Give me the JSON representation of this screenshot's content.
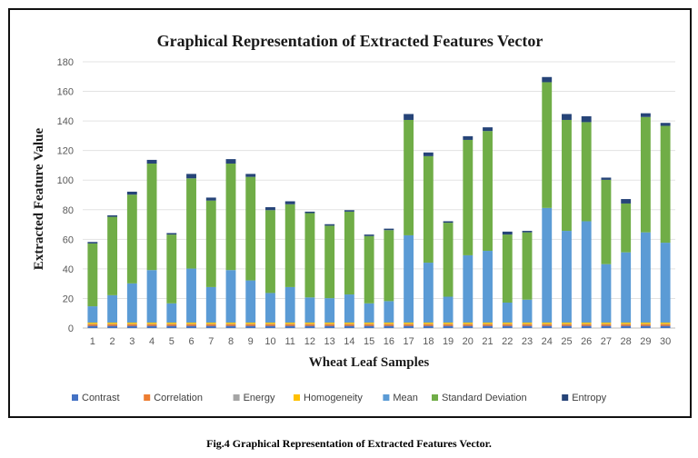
{
  "chart_data": {
    "type": "bar",
    "stacked": true,
    "title": "Graphical Representation of Extracted Features Vector",
    "xlabel": "Wheat Leaf Samples",
    "ylabel": "Extracted Feature Value",
    "ylim": [
      0,
      180
    ],
    "yticks": [
      0,
      20,
      40,
      60,
      80,
      100,
      120,
      140,
      160,
      180
    ],
    "grid": true,
    "legend_position": "bottom",
    "categories": [
      "1",
      "2",
      "3",
      "4",
      "5",
      "6",
      "7",
      "8",
      "9",
      "10",
      "11",
      "12",
      "13",
      "14",
      "15",
      "16",
      "17",
      "18",
      "19",
      "20",
      "21",
      "22",
      "23",
      "24",
      "25",
      "26",
      "27",
      "28",
      "29",
      "30"
    ],
    "series": [
      {
        "name": "Contrast",
        "color": "#4472C4",
        "values": [
          1.5,
          1.5,
          1.5,
          1.5,
          1.5,
          1.5,
          1.5,
          1.5,
          1.5,
          1.5,
          1.5,
          1.5,
          1.5,
          1.5,
          1.5,
          1.5,
          1.5,
          1.5,
          1.5,
          1.5,
          1.5,
          1.5,
          1.5,
          1.5,
          1.5,
          1.5,
          1.5,
          1.5,
          1.5,
          1.5
        ]
      },
      {
        "name": "Correlation",
        "color": "#ED7D31",
        "values": [
          1,
          1,
          1,
          1,
          1,
          1,
          1,
          1,
          1,
          1,
          1,
          1,
          1,
          1,
          1,
          1,
          1,
          1,
          1,
          1,
          1,
          1,
          1,
          1,
          1,
          1,
          1,
          1,
          1,
          1
        ]
      },
      {
        "name": "Energy",
        "color": "#A5A5A5",
        "values": [
          0.3,
          0.3,
          0.3,
          0.3,
          0.3,
          0.3,
          0.3,
          0.3,
          0.3,
          0.3,
          0.3,
          0.3,
          0.3,
          0.3,
          0.3,
          0.3,
          0.3,
          0.3,
          0.3,
          0.3,
          0.3,
          0.3,
          0.3,
          0.3,
          0.3,
          0.3,
          0.3,
          0.3,
          0.3,
          0.3
        ]
      },
      {
        "name": "Homogeneity",
        "color": "#FFC000",
        "values": [
          0.9,
          0.9,
          0.9,
          0.9,
          0.9,
          0.9,
          0.9,
          0.9,
          0.9,
          0.9,
          0.9,
          0.9,
          0.9,
          0.9,
          0.9,
          0.9,
          0.9,
          0.9,
          0.9,
          0.9,
          0.9,
          0.9,
          0.9,
          0.9,
          0.9,
          0.9,
          0.9,
          0.9,
          0.9,
          0.9
        ]
      },
      {
        "name": "Mean",
        "color": "#5B9BD5",
        "values": [
          11,
          18.5,
          26.5,
          35.5,
          13,
          36.5,
          24,
          35.5,
          28.5,
          20,
          24,
          17,
          16.5,
          19,
          13,
          14.5,
          59,
          40.5,
          17.5,
          45.5,
          48.5,
          13.5,
          15.5,
          77.5,
          62,
          68.5,
          39.5,
          47.5,
          61,
          54
        ]
      },
      {
        "name": "Standard Deviation",
        "color": "#70AD47",
        "values": [
          42.5,
          53,
          60,
          72,
          46.5,
          61,
          58.5,
          72,
          70,
          56,
          56,
          57,
          49,
          56,
          45.5,
          48,
          78,
          72,
          50,
          78,
          81,
          46,
          45.5,
          85,
          75,
          67,
          57,
          33,
          78,
          79
        ]
      },
      {
        "name": "Entropy",
        "color": "#264478",
        "values": [
          1,
          1,
          2,
          2.5,
          1,
          3,
          2,
          3,
          2,
          2,
          2,
          1,
          1,
          1,
          1,
          1,
          4,
          2.5,
          1,
          2.5,
          2.5,
          2,
          1,
          3.5,
          4,
          4,
          1.5,
          3,
          2.5,
          2
        ]
      }
    ]
  },
  "caption": "Fig.4 Graphical Representation of Extracted Features Vector."
}
